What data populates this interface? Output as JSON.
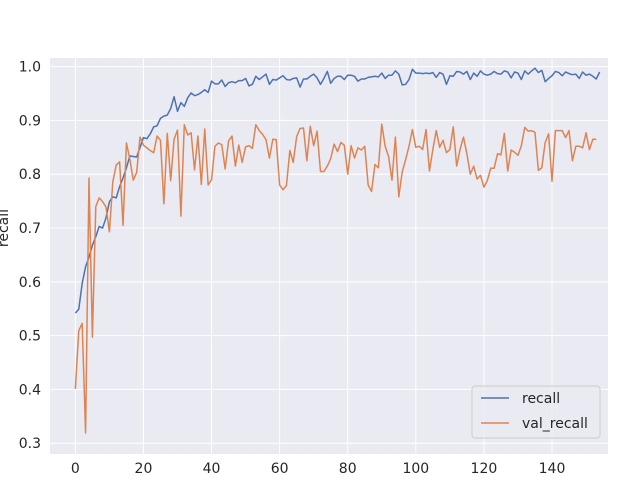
{
  "chart_data": {
    "type": "line",
    "title": "",
    "xlabel": "",
    "ylabel": "recall",
    "xlim": [
      -7.45,
      156.45
    ],
    "ylim": [
      0.28,
      1.016
    ],
    "xticks": [
      0,
      20,
      40,
      60,
      80,
      100,
      120,
      140
    ],
    "yticks": [
      0.3,
      0.4,
      0.5,
      0.6,
      0.7,
      0.8,
      0.9,
      1.0
    ],
    "grid": true,
    "legend_position": "lower-right",
    "colors": {
      "background": "#eaeaf2",
      "grid": "#ffffff",
      "recall": "#4c72b0",
      "val_recall": "#dd8452"
    },
    "series": [
      {
        "name": "recall",
        "values": [
          0.542,
          0.549,
          0.597,
          0.628,
          0.646,
          0.668,
          0.684,
          0.703,
          0.7,
          0.719,
          0.749,
          0.758,
          0.756,
          0.777,
          0.793,
          0.812,
          0.834,
          0.833,
          0.832,
          0.85,
          0.868,
          0.866,
          0.875,
          0.888,
          0.89,
          0.904,
          0.908,
          0.91,
          0.922,
          0.944,
          0.917,
          0.933,
          0.926,
          0.942,
          0.951,
          0.946,
          0.948,
          0.952,
          0.957,
          0.952,
          0.973,
          0.968,
          0.968,
          0.975,
          0.963,
          0.97,
          0.972,
          0.97,
          0.974,
          0.974,
          0.978,
          0.964,
          0.967,
          0.982,
          0.976,
          0.981,
          0.986,
          0.967,
          0.976,
          0.975,
          0.979,
          0.983,
          0.976,
          0.975,
          0.978,
          0.979,
          0.962,
          0.977,
          0.977,
          0.982,
          0.986,
          0.979,
          0.967,
          0.978,
          0.991,
          0.969,
          0.978,
          0.982,
          0.982,
          0.976,
          0.984,
          0.984,
          0.982,
          0.973,
          0.977,
          0.977,
          0.98,
          0.981,
          0.982,
          0.981,
          0.988,
          0.978,
          0.984,
          0.984,
          0.992,
          0.986,
          0.966,
          0.967,
          0.976,
          0.995,
          0.988,
          0.988,
          0.987,
          0.988,
          0.987,
          0.989,
          0.98,
          0.989,
          0.986,
          0.967,
          0.983,
          0.982,
          0.991,
          0.99,
          0.986,
          0.991,
          0.976,
          0.988,
          0.982,
          0.992,
          0.986,
          0.984,
          0.986,
          0.991,
          0.987,
          0.986,
          0.992,
          0.99,
          0.979,
          0.99,
          0.988,
          0.976,
          0.992,
          0.986,
          0.992,
          0.997,
          0.989,
          0.993,
          0.972,
          0.978,
          0.983,
          0.991,
          0.989,
          0.983,
          0.99,
          0.987,
          0.985,
          0.986,
          0.978,
          0.99,
          0.984,
          0.986,
          0.982,
          0.977,
          0.99
        ]
      },
      {
        "name": "val_recall",
        "values": [
          0.401,
          0.509,
          0.523,
          0.319,
          0.793,
          0.497,
          0.74,
          0.756,
          0.749,
          0.739,
          0.693,
          0.786,
          0.817,
          0.823,
          0.705,
          0.858,
          0.828,
          0.789,
          0.803,
          0.869,
          0.854,
          0.849,
          0.844,
          0.84,
          0.871,
          0.863,
          0.745,
          0.876,
          0.788,
          0.865,
          0.882,
          0.722,
          0.892,
          0.873,
          0.877,
          0.808,
          0.871,
          0.781,
          0.884,
          0.78,
          0.79,
          0.852,
          0.858,
          0.855,
          0.81,
          0.862,
          0.871,
          0.815,
          0.854,
          0.822,
          0.851,
          0.853,
          0.848,
          0.892,
          0.881,
          0.874,
          0.864,
          0.83,
          0.865,
          0.864,
          0.78,
          0.771,
          0.779,
          0.844,
          0.822,
          0.87,
          0.885,
          0.886,
          0.825,
          0.889,
          0.853,
          0.88,
          0.805,
          0.805,
          0.815,
          0.829,
          0.856,
          0.842,
          0.859,
          0.854,
          0.8,
          0.853,
          0.83,
          0.849,
          0.845,
          0.852,
          0.78,
          0.768,
          0.818,
          0.812,
          0.893,
          0.852,
          0.833,
          0.789,
          0.869,
          0.758,
          0.804,
          0.827,
          0.852,
          0.883,
          0.85,
          0.852,
          0.846,
          0.883,
          0.806,
          0.846,
          0.881,
          0.85,
          0.863,
          0.84,
          0.846,
          0.888,
          0.815,
          0.846,
          0.869,
          0.838,
          0.8,
          0.815,
          0.791,
          0.798,
          0.776,
          0.788,
          0.811,
          0.811,
          0.838,
          0.836,
          0.876,
          0.806,
          0.845,
          0.841,
          0.835,
          0.853,
          0.887,
          0.88,
          0.881,
          0.878,
          0.807,
          0.812,
          0.859,
          0.875,
          0.787,
          0.881,
          0.881,
          0.881,
          0.868,
          0.881,
          0.825,
          0.852,
          0.852,
          0.849,
          0.877,
          0.846,
          0.865,
          0.865
        ]
      }
    ]
  }
}
